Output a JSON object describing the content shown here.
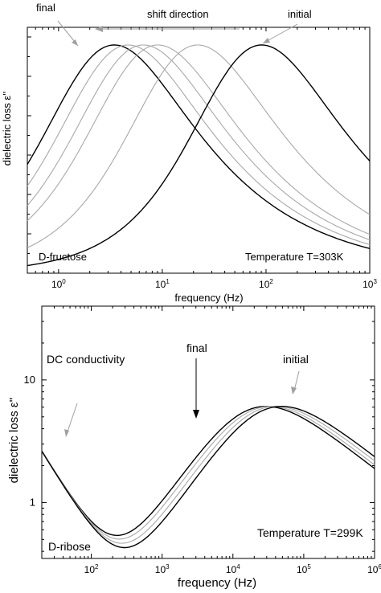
{
  "chart_data": [
    {
      "type": "line",
      "panel": "top",
      "xscale": "log",
      "xlim": [
        0.5,
        1000
      ],
      "ylim": [
        0,
        1
      ],
      "y_ticks_labeled": false,
      "xticks": [
        1,
        10,
        100,
        1000
      ],
      "xticklabels": [
        "10^0",
        "10^1",
        "10^2",
        "10^3"
      ],
      "xlabel": "frequency (Hz)",
      "ylabel": "dielectric loss ε''",
      "annotations": {
        "final": "final",
        "initial": "initial",
        "shift_direction": "shift direction",
        "sample": "D-fructose",
        "temperature": "Temperature T=303K"
      },
      "series": [
        {
          "peak_freq": 2.2,
          "peak_height": 0.89,
          "left_slope": 0.85,
          "right_slope": 0.47,
          "color": "#000000"
        },
        {
          "peak_freq": 3.0,
          "peak_height": 0.89,
          "left_slope": 0.85,
          "right_slope": 0.47,
          "color": "#a8a8a8"
        },
        {
          "peak_freq": 4.2,
          "peak_height": 0.89,
          "left_slope": 0.85,
          "right_slope": 0.47,
          "color": "#a8a8a8"
        },
        {
          "peak_freq": 5.8,
          "peak_height": 0.89,
          "left_slope": 0.85,
          "right_slope": 0.47,
          "color": "#a8a8a8"
        },
        {
          "peak_freq": 14,
          "peak_height": 0.89,
          "left_slope": 0.85,
          "right_slope": 0.47,
          "color": "#a8a8a8"
        },
        {
          "peak_freq": 58,
          "peak_height": 0.89,
          "left_slope": 0.85,
          "right_slope": 0.47,
          "color": "#000000"
        }
      ]
    },
    {
      "type": "line",
      "panel": "bottom",
      "xscale": "log",
      "yscale": "log",
      "xlim": [
        20,
        1000000
      ],
      "ylim": [
        0.35,
        40
      ],
      "xticks": [
        100,
        1000,
        10000,
        100000,
        1000000
      ],
      "xticklabels": [
        "10^2",
        "10^3",
        "10^4",
        "10^5",
        "10^6"
      ],
      "yticks": [
        1,
        10
      ],
      "yticklabels": [
        "1",
        "10"
      ],
      "xlabel": "frequency (Hz)",
      "ylabel": "dielectric loss ε''",
      "annotations": {
        "dc": "DC conductivity",
        "final": "final",
        "initial": "initial",
        "sample": "D-ribose",
        "temperature": "Temperature T=299K"
      },
      "series": [
        {
          "peak_freq": 18000,
          "peak_height": 5.8,
          "color": "#000000"
        },
        {
          "peak_freq": 21000,
          "peak_height": 5.8,
          "color": "#a8a8a8"
        },
        {
          "peak_freq": 25000,
          "peak_height": 5.8,
          "color": "#a8a8a8"
        },
        {
          "peak_freq": 30000,
          "peak_height": 5.8,
          "color": "#000000"
        }
      ],
      "minimum_points": [
        {
          "x": 170,
          "y": 0.5
        },
        {
          "x": 200,
          "y": 0.49
        },
        {
          "x": 225,
          "y": 0.48
        },
        {
          "x": 260,
          "y": 0.47
        }
      ]
    }
  ]
}
